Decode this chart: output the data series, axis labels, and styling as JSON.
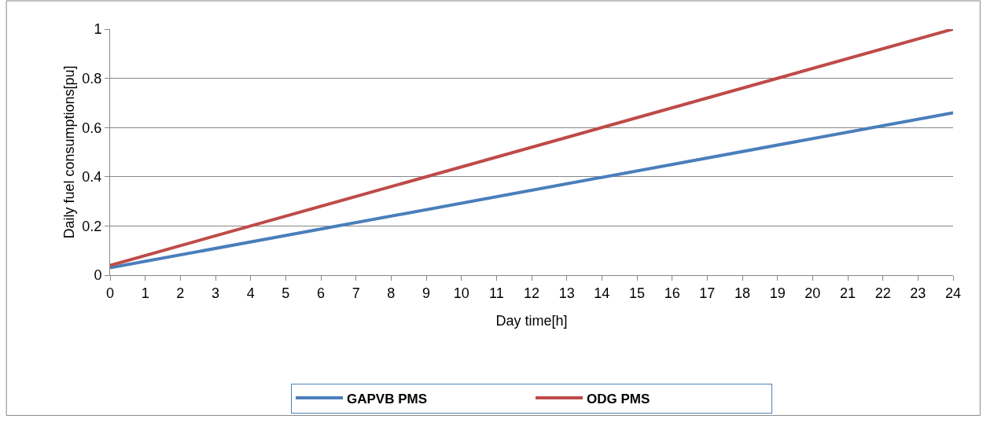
{
  "chart_data": {
    "type": "line",
    "xlabel": "Day time[h]",
    "ylabel": "Daily fuel consumptions[pu]",
    "x": [
      0,
      24
    ],
    "series": [
      {
        "name": "GAPVB PMS",
        "color": "#4a7ebb",
        "values": [
          0.03,
          0.66
        ]
      },
      {
        "name": "ODG PMS",
        "color": "#be4b48",
        "values": [
          0.04,
          1.0
        ]
      }
    ],
    "xlim": [
      0,
      24
    ],
    "xticks": [
      0,
      1,
      2,
      3,
      4,
      5,
      6,
      7,
      8,
      9,
      10,
      11,
      12,
      13,
      14,
      15,
      16,
      17,
      18,
      19,
      20,
      21,
      22,
      23,
      24
    ],
    "ylim": [
      0,
      1
    ],
    "yticks": [
      0,
      0.2,
      0.4,
      0.6,
      0.8,
      1
    ],
    "grid": "y",
    "legend": "bottom",
    "marker": "none",
    "line_style": "solid"
  }
}
